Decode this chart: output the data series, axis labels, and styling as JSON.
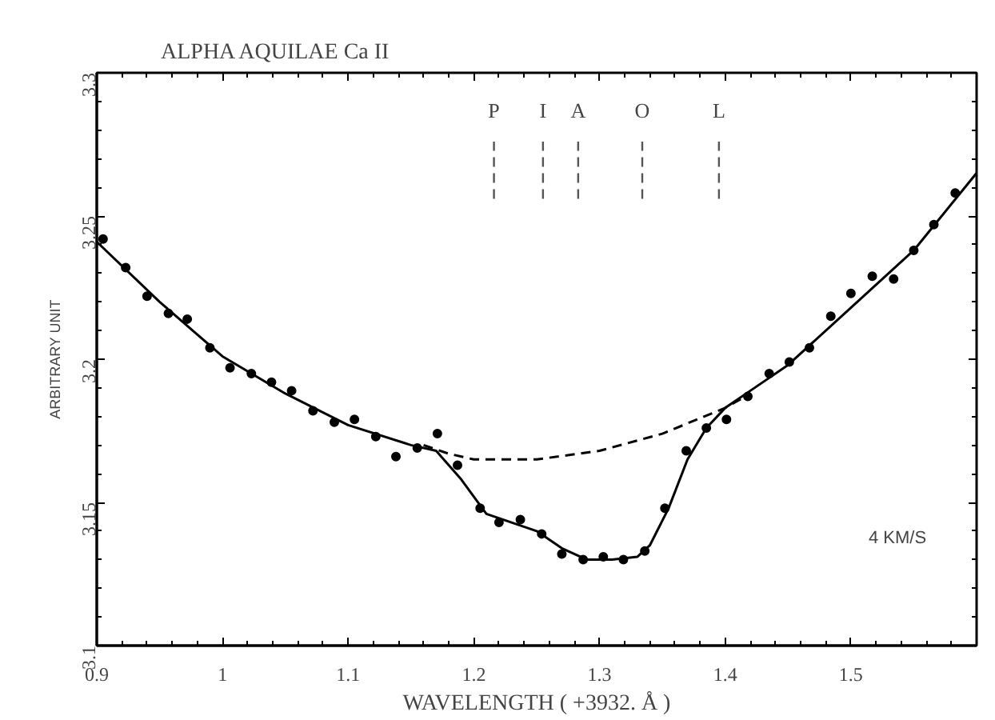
{
  "chart_data": {
    "type": "scatter",
    "title": "ALPHA AQUILAE Ca II",
    "xlabel": "WAVELENGTH ( +3932. Å )",
    "ylabel": "ARBITRARY UNIT",
    "xlim": [
      0.9,
      1.6
    ],
    "ylim": [
      3.1,
      3.3
    ],
    "xticks": [
      0.9,
      1,
      1.1,
      1.2,
      1.3,
      1.4,
      1.5
    ],
    "yticks": [
      3.1,
      3.15,
      3.2,
      3.25,
      3.3
    ],
    "grid": false,
    "series": [
      {
        "color": "#000000",
        "marker": "circle",
        "x": [
          0.905,
          0.923,
          0.94,
          0.957,
          0.972,
          0.99,
          1.006,
          1.023,
          1.039,
          1.055,
          1.072,
          1.089,
          1.105,
          1.122,
          1.138,
          1.155,
          1.171,
          1.187,
          1.205,
          1.22,
          1.237,
          1.254,
          1.27,
          1.287,
          1.303,
          1.319,
          1.336,
          1.352,
          1.369,
          1.385,
          1.401,
          1.418,
          1.435,
          1.451,
          1.467,
          1.484,
          1.5,
          1.517,
          1.534,
          1.55,
          1.566,
          1.583
        ],
        "values": [
          3.242,
          3.232,
          3.222,
          3.216,
          3.214,
          3.204,
          3.197,
          3.195,
          3.192,
          3.189,
          3.182,
          3.178,
          3.179,
          3.173,
          3.166,
          3.169,
          3.174,
          3.163,
          3.148,
          3.143,
          3.144,
          3.139,
          3.132,
          3.13,
          3.131,
          3.13,
          3.133,
          3.148,
          3.168,
          3.176,
          3.179,
          3.187,
          3.195,
          3.199,
          3.204,
          3.215,
          3.223,
          3.229,
          3.228,
          3.238,
          3.247,
          3.258
        ]
      },
      {
        "type": "line",
        "color": "#000000",
        "line_style": "solid",
        "x": [
          0.9,
          0.95,
          1.0,
          1.05,
          1.1,
          1.15,
          1.17,
          1.19,
          1.21,
          1.23,
          1.25,
          1.27,
          1.29,
          1.31,
          1.33,
          1.34,
          1.355,
          1.37,
          1.385,
          1.4,
          1.42,
          1.45,
          1.5,
          1.55,
          1.6
        ],
        "values": [
          3.241,
          3.22,
          3.201,
          3.188,
          3.177,
          3.17,
          3.168,
          3.158,
          3.146,
          3.143,
          3.14,
          3.134,
          3.13,
          3.13,
          3.131,
          3.135,
          3.148,
          3.165,
          3.176,
          3.183,
          3.189,
          3.198,
          3.218,
          3.238,
          3.265
        ]
      },
      {
        "type": "line",
        "color": "#000000",
        "line_style": "dashed",
        "x": [
          1.16,
          1.18,
          1.2,
          1.25,
          1.3,
          1.35,
          1.4,
          1.42
        ],
        "values": [
          3.17,
          3.167,
          3.165,
          3.165,
          3.168,
          3.174,
          3.183,
          3.188
        ]
      }
    ],
    "ref_lines": [
      {
        "axis": "x",
        "value": 1.216,
        "label": "P",
        "line_style": "dashed",
        "color": "#555555"
      },
      {
        "axis": "x",
        "value": 1.255,
        "label": "I",
        "line_style": "dashed",
        "color": "#555555"
      },
      {
        "axis": "x",
        "value": 1.283,
        "label": "A",
        "line_style": "dashed",
        "color": "#555555"
      },
      {
        "axis": "x",
        "value": 1.334,
        "label": "O",
        "line_style": "dashed",
        "color": "#555555"
      },
      {
        "axis": "x",
        "value": 1.395,
        "label": "L",
        "line_style": "dashed",
        "color": "#555555"
      }
    ],
    "annotations": [
      "4 KM/S"
    ]
  }
}
